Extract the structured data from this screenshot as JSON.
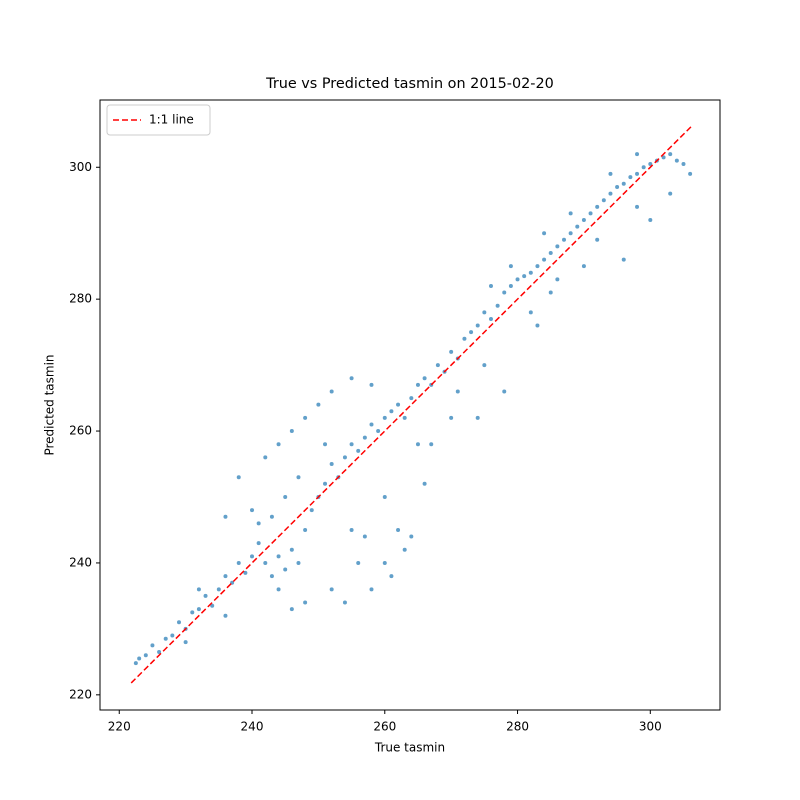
{
  "chart_data": {
    "type": "scatter",
    "title": "True vs Predicted tasmin on 2015-02-20",
    "x_label": "True tasmin",
    "y_label": "Predicted tasmin",
    "xlim": [
      217.1,
      310.5
    ],
    "ylim": [
      217.7,
      310.2
    ],
    "xticks": [
      220,
      240,
      260,
      280,
      300
    ],
    "yticks": [
      220,
      240,
      260,
      280,
      300
    ],
    "grid": false,
    "legend": "upper left",
    "series": [
      {
        "type": "scatter",
        "color": "#1f77b4",
        "x": [
          222.5,
          223,
          224,
          225,
          226,
          227,
          228,
          229,
          230,
          231,
          232,
          233,
          234,
          235,
          236,
          237,
          238,
          239,
          240,
          241,
          242,
          243,
          244,
          245,
          246,
          247,
          248,
          249,
          250,
          251,
          252,
          253,
          254,
          255,
          256,
          257,
          258,
          259,
          260,
          261,
          262,
          263,
          264,
          265,
          266,
          267,
          268,
          269,
          270,
          271,
          272,
          273,
          274,
          275,
          276,
          277,
          278,
          279,
          280,
          281,
          282,
          283,
          284,
          285,
          286,
          287,
          288,
          289,
          290,
          291,
          292,
          293,
          294,
          295,
          296,
          297,
          298,
          299,
          300,
          301,
          302,
          303,
          304,
          305,
          306,
          238,
          240,
          242,
          244,
          243,
          246,
          248,
          250,
          252,
          255,
          258,
          260,
          262,
          264,
          266,
          265,
          270,
          274,
          278,
          283,
          290,
          296,
          300,
          248,
          246,
          244,
          252,
          256,
          258,
          254,
          236,
          232,
          230,
          236,
          241,
          245,
          247,
          251,
          263,
          267,
          271,
          275,
          282,
          286,
          292,
          298,
          303,
          276,
          279,
          284,
          288,
          294,
          298,
          285,
          255,
          257,
          260,
          261
        ],
        "y": [
          224.8,
          225.5,
          226,
          227.5,
          226.5,
          228.5,
          229,
          231,
          230,
          232.5,
          233,
          235,
          233.5,
          236,
          238,
          237,
          240,
          238.5,
          241,
          243,
          240,
          238,
          241,
          239,
          242,
          240,
          245,
          248,
          250,
          252,
          255,
          253,
          256,
          258,
          257,
          259,
          261,
          260,
          262,
          263,
          264,
          262,
          265,
          267,
          268,
          267,
          270,
          269,
          272,
          271,
          274,
          275,
          276,
          278,
          277,
          279,
          281,
          282,
          283,
          283.5,
          284,
          285,
          286,
          287,
          288,
          289,
          290,
          291,
          292,
          293,
          294,
          295,
          296,
          297,
          297.5,
          298.5,
          299,
          300,
          300.5,
          301,
          301.5,
          302,
          301,
          300.5,
          299,
          253,
          248,
          256,
          258,
          247,
          260,
          262,
          264,
          266,
          268,
          267,
          250,
          245,
          244,
          252,
          258,
          262,
          262,
          266,
          276,
          285,
          286,
          292,
          234,
          233,
          236,
          236,
          240,
          236,
          234,
          232,
          236,
          228,
          247,
          246,
          250,
          253,
          258,
          242,
          258,
          266,
          270,
          278,
          283,
          289,
          294,
          296,
          282,
          285,
          290,
          293,
          299,
          302,
          281,
          245,
          244,
          240,
          238
        ]
      },
      {
        "type": "line",
        "name": "1:1 line",
        "color": "#ff0000",
        "dashed": true,
        "x": [
          221.8,
          306.3
        ],
        "y": [
          221.8,
          306.3
        ]
      }
    ]
  }
}
